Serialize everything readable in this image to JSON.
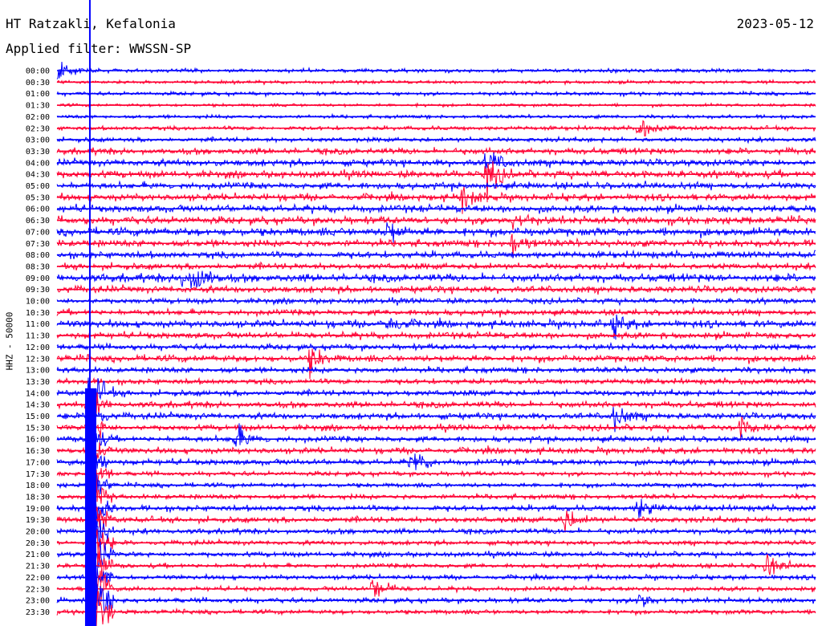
{
  "header": {
    "station": "HT Ratzakli, Kefalonia",
    "date": "2023-05-12",
    "filter": "Applied filter: WWSSN-SP"
  },
  "channel_label": "HHZ - 50000",
  "colors": {
    "blue": "#0000ff",
    "red": "#ff0033"
  },
  "chart_data": {
    "type": "line",
    "title": "HT Ratzakli, Kefalonia",
    "subtitle": "Applied filter: WWSSN-SP",
    "ylabel": "HHZ - 50000",
    "xlabel": "",
    "row_labels": [
      "00:00",
      "00:30",
      "01:00",
      "01:30",
      "02:00",
      "02:30",
      "03:00",
      "03:30",
      "04:00",
      "04:30",
      "05:00",
      "05:30",
      "06:00",
      "06:30",
      "07:00",
      "07:30",
      "08:00",
      "08:30",
      "09:00",
      "09:30",
      "10:00",
      "10:30",
      "11:00",
      "11:30",
      "12:00",
      "12:30",
      "13:00",
      "13:30",
      "14:00",
      "14:30",
      "15:00",
      "15:30",
      "16:00",
      "16:30",
      "17:00",
      "17:30",
      "18:00",
      "18:30",
      "19:00",
      "19:30",
      "20:00",
      "20:30",
      "21:00",
      "21:30",
      "22:00",
      "22:30",
      "23:00",
      "23:30"
    ],
    "row_colors": [
      "blue",
      "red"
    ],
    "activity_levels": [
      0.2,
      0.15,
      0.2,
      0.12,
      0.18,
      0.25,
      0.3,
      0.5,
      0.55,
      0.6,
      0.55,
      0.55,
      0.6,
      0.65,
      0.7,
      0.6,
      0.55,
      0.5,
      0.7,
      0.55,
      0.4,
      0.45,
      0.6,
      0.5,
      0.45,
      0.55,
      0.45,
      0.4,
      0.45,
      0.5,
      0.5,
      0.45,
      0.45,
      0.45,
      0.45,
      0.3,
      0.3,
      0.35,
      0.45,
      0.45,
      0.4,
      0.3,
      0.35,
      0.3,
      0.3,
      0.3,
      0.35,
      0.3
    ],
    "events": [
      {
        "row": 0,
        "time_min": 0,
        "amp": 1.2
      },
      {
        "row": 5,
        "time_min": 23,
        "amp": 1.0
      },
      {
        "row": 8,
        "time_min": 17,
        "amp": 1.3
      },
      {
        "row": 9,
        "time_min": 17,
        "amp": 1.6
      },
      {
        "row": 11,
        "time_min": 16,
        "amp": 1.2
      },
      {
        "row": 13,
        "time_min": 18,
        "amp": 1.0
      },
      {
        "row": 14,
        "time_min": 13,
        "amp": 1.2
      },
      {
        "row": 15,
        "time_min": 18,
        "amp": 1.1
      },
      {
        "row": 18,
        "time_min": 5,
        "amp": 1.4
      },
      {
        "row": 18,
        "time_min": 5.5,
        "amp": 1.2
      },
      {
        "row": 22,
        "time_min": 13,
        "amp": 1.1
      },
      {
        "row": 22,
        "time_min": 22,
        "amp": 1.1
      },
      {
        "row": 25,
        "time_min": 10,
        "amp": 1.2
      },
      {
        "row": 28,
        "time_min": 1.5,
        "amp": 1.0
      },
      {
        "row": 30,
        "time_min": 22,
        "amp": 1.3
      },
      {
        "row": 31,
        "time_min": 27,
        "amp": 1.1
      },
      {
        "row": 32,
        "time_min": 7,
        "amp": 1.5
      },
      {
        "row": 34,
        "time_min": 14,
        "amp": 1.2
      },
      {
        "row": 38,
        "time_min": 23,
        "amp": 1.1
      },
      {
        "row": 39,
        "time_min": 20,
        "amp": 1.3
      },
      {
        "row": 43,
        "time_min": 28,
        "amp": 1.5
      },
      {
        "row": 45,
        "time_min": 12.5,
        "amp": 1.3
      },
      {
        "row": 46,
        "time_min": 23,
        "amp": 1.0
      }
    ],
    "large_event": {
      "start_row": 28,
      "end_row": 47,
      "time_min": 1.3,
      "amp": 4.0
    },
    "marker_line": {
      "time_min": 1.3,
      "color": "blue"
    }
  }
}
